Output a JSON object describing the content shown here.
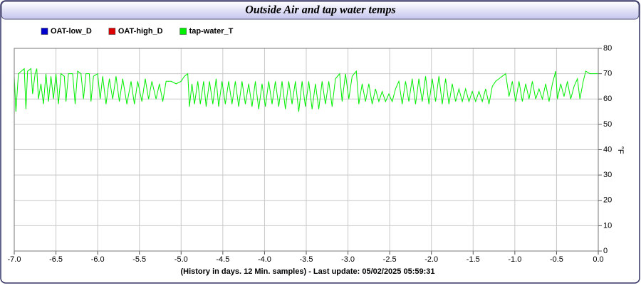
{
  "chart_data": {
    "type": "line",
    "title": "Outside Air and tap water temps",
    "xlabel": "(History in days. 12 Min. samples) - Last update: 05/02/2025 05:59:31",
    "ylabel": "°F",
    "xlim": [
      -7,
      0
    ],
    "ylim": [
      0,
      80
    ],
    "xticks": [
      {
        "value": -7,
        "label": "-7.0"
      },
      -6.5,
      {
        "value": -6,
        "label": "-6.0"
      },
      -5.5,
      {
        "value": -5,
        "label": "-5.0"
      },
      -4.5,
      {
        "value": -4,
        "label": "-4.0"
      },
      -3.5,
      {
        "value": -3,
        "label": "-3.0"
      },
      -2.5,
      {
        "value": -2,
        "label": "-2.0"
      },
      -1.5,
      {
        "value": -1,
        "label": "-1.0"
      },
      -0.5,
      {
        "value": 0,
        "label": "0.0"
      }
    ],
    "yticks": [
      0,
      10,
      20,
      30,
      40,
      50,
      60,
      70,
      80
    ],
    "grid": true,
    "legend": "top-left",
    "series": [
      {
        "name": "OAT-low_D",
        "color": "#0000cc",
        "x": [],
        "values": []
      },
      {
        "name": "OAT-high_D",
        "color": "#dd0000",
        "x": [],
        "values": []
      },
      {
        "name": "tap-water_T",
        "color": "#00ee00",
        "x": [
          -7.0,
          -6.98,
          -6.95,
          -6.88,
          -6.86,
          -6.84,
          -6.8,
          -6.78,
          -6.75,
          -6.73,
          -6.71,
          -6.68,
          -6.65,
          -6.62,
          -6.59,
          -6.56,
          -6.53,
          -6.5,
          -6.47,
          -6.44,
          -6.4,
          -6.38,
          -6.35,
          -6.3,
          -6.27,
          -6.24,
          -6.2,
          -6.17,
          -6.14,
          -6.1,
          -6.08,
          -6.05,
          -6.0,
          -5.97,
          -5.94,
          -5.9,
          -5.86,
          -5.82,
          -5.78,
          -5.74,
          -5.7,
          -5.65,
          -5.6,
          -5.56,
          -5.52,
          -5.47,
          -5.43,
          -5.39,
          -5.35,
          -5.3,
          -5.26,
          -5.22,
          -5.18,
          -5.12,
          -5.06,
          -5.0,
          -4.96,
          -4.92,
          -4.9,
          -4.87,
          -4.84,
          -4.8,
          -4.77,
          -4.73,
          -4.7,
          -4.66,
          -4.62,
          -4.58,
          -4.55,
          -4.51,
          -4.47,
          -4.43,
          -4.39,
          -4.35,
          -4.31,
          -4.27,
          -4.23,
          -4.19,
          -4.15,
          -4.11,
          -4.07,
          -4.03,
          -3.99,
          -3.95,
          -3.91,
          -3.87,
          -3.83,
          -3.79,
          -3.75,
          -3.71,
          -3.67,
          -3.63,
          -3.59,
          -3.55,
          -3.51,
          -3.47,
          -3.43,
          -3.39,
          -3.35,
          -3.31,
          -3.27,
          -3.23,
          -3.19,
          -3.15,
          -3.1,
          -3.07,
          -3.03,
          -2.99,
          -2.95,
          -2.9,
          -2.87,
          -2.83,
          -2.79,
          -2.75,
          -2.71,
          -2.67,
          -2.63,
          -2.59,
          -2.55,
          -2.51,
          -2.47,
          -2.43,
          -2.39,
          -2.35,
          -2.31,
          -2.27,
          -2.23,
          -2.19,
          -2.15,
          -2.11,
          -2.07,
          -2.03,
          -1.99,
          -1.95,
          -1.91,
          -1.87,
          -1.83,
          -1.79,
          -1.75,
          -1.71,
          -1.67,
          -1.63,
          -1.59,
          -1.55,
          -1.51,
          -1.47,
          -1.43,
          -1.39,
          -1.35,
          -1.31,
          -1.27,
          -1.23,
          -1.19,
          -1.15,
          -1.11,
          -1.07,
          -1.03,
          -0.99,
          -0.95,
          -0.91,
          -0.87,
          -0.83,
          -0.79,
          -0.75,
          -0.71,
          -0.67,
          -0.63,
          -0.59,
          -0.55,
          -0.51,
          -0.49,
          -0.45,
          -0.41,
          -0.37,
          -0.33,
          -0.29,
          -0.25,
          -0.22,
          -0.18,
          -0.15,
          -0.1,
          -0.05,
          0.0
        ],
        "values": [
          69,
          55,
          70,
          72,
          56,
          71,
          72,
          62,
          70,
          72,
          60,
          66,
          58,
          70,
          59,
          69,
          60,
          70,
          58,
          70,
          69,
          59,
          70,
          70,
          58,
          71,
          70,
          60,
          70,
          70,
          59,
          69,
          70,
          60,
          69,
          58,
          68,
          60,
          69,
          59,
          68,
          58,
          67,
          58,
          67,
          59,
          68,
          60,
          67,
          60,
          66,
          59,
          67,
          67,
          66,
          67,
          69,
          70,
          57,
          66,
          58,
          67,
          58,
          67,
          57,
          67,
          58,
          68,
          57,
          67,
          58,
          67,
          58,
          67,
          57,
          67,
          58,
          66,
          57,
          67,
          56,
          66,
          57,
          67,
          58,
          67,
          57,
          67,
          56,
          67,
          58,
          67,
          55,
          67,
          57,
          67,
          56,
          66,
          56,
          67,
          58,
          67,
          57,
          68,
          70,
          59,
          70,
          60,
          69,
          71,
          58,
          66,
          59,
          66,
          58,
          64,
          59,
          63,
          59,
          62,
          59,
          64,
          67,
          58,
          67,
          59,
          68,
          58,
          68,
          59,
          69,
          58,
          68,
          59,
          69,
          58,
          68,
          58,
          66,
          59,
          64,
          59,
          64,
          59,
          63,
          59,
          63,
          59,
          64,
          58,
          65,
          67,
          68,
          69,
          70,
          61,
          67,
          59,
          67,
          59,
          66,
          60,
          67,
          60,
          64,
          60,
          66,
          59,
          66,
          71,
          60,
          66,
          61,
          67,
          60,
          65,
          68,
          60,
          67,
          71,
          70,
          70,
          70
        ]
      }
    ]
  }
}
